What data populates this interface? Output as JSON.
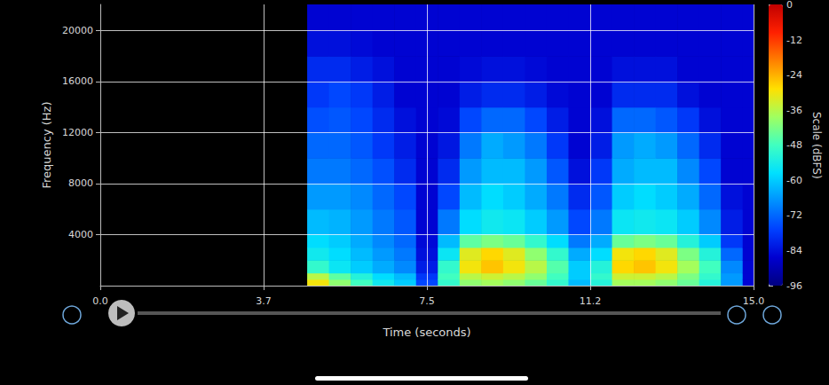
{
  "chart_data": {
    "type": "heatmap",
    "xlabel": "Time (seconds)",
    "ylabel": "Frequency (Hz)",
    "xlim": [
      0,
      15
    ],
    "xticks": [
      {
        "value": 0,
        "label": "0.0"
      },
      {
        "value": 3.75,
        "label": "3.7"
      },
      {
        "value": 7.5,
        "label": "7.5"
      },
      {
        "value": 11.25,
        "label": "11.2"
      },
      {
        "value": 15,
        "label": "15.0"
      }
    ],
    "ylim": [
      0,
      22050
    ],
    "yticks": [
      4000,
      8000,
      12000,
      16000,
      20000
    ],
    "grid": true,
    "time_bins": [
      0,
      4.75,
      5.25,
      5.75,
      6.25,
      6.75,
      7.25,
      7.75,
      8.25,
      8.75,
      9.25,
      9.75,
      10.25,
      10.75,
      11.25,
      11.75,
      12.25,
      12.75,
      13.25,
      13.75,
      14.25,
      14.75,
      15
    ],
    "frequency_bins": [
      0,
      500,
      1000,
      2000,
      3000,
      4000,
      6000,
      8000,
      10000,
      12000,
      14000,
      16000,
      18000,
      20000,
      22050
    ],
    "cells": [
      [
        null,
        null,
        null,
        null,
        null,
        null,
        null,
        null,
        null,
        null,
        null,
        null,
        null,
        null
      ],
      [
        -30,
        -36,
        -50,
        -55,
        -58,
        -62,
        -66,
        -70,
        -72,
        -75,
        -78,
        -80,
        -84,
        -86
      ],
      [
        -40,
        -45,
        -56,
        -58,
        -60,
        -63,
        -66,
        -70,
        -72,
        -74,
        -76,
        -80,
        -84,
        -86
      ],
      [
        -48,
        -52,
        -60,
        -62,
        -64,
        -66,
        -68,
        -72,
        -74,
        -76,
        -78,
        -82,
        -85,
        -86
      ],
      [
        -55,
        -58,
        -64,
        -66,
        -68,
        -70,
        -72,
        -75,
        -78,
        -80,
        -82,
        -84,
        -86,
        -86
      ],
      [
        -60,
        -62,
        -68,
        -70,
        -72,
        -74,
        -76,
        -80,
        -82,
        -84,
        -86,
        -86,
        -86,
        -86
      ],
      [
        -76,
        -78,
        -82,
        -84,
        -85,
        -86,
        -86,
        -86,
        -86,
        -86,
        -86,
        -86,
        -86,
        -86
      ],
      [
        -50,
        -48,
        -50,
        -56,
        -62,
        -70,
        -76,
        -80,
        -83,
        -85,
        -86,
        -86,
        -86,
        -86
      ],
      [
        -40,
        -36,
        -30,
        -32,
        -45,
        -58,
        -62,
        -66,
        -70,
        -76,
        -82,
        -85,
        -86,
        -86
      ],
      [
        -38,
        -34,
        -26,
        -28,
        -42,
        -55,
        -58,
        -62,
        -64,
        -72,
        -80,
        -84,
        -86,
        -86
      ],
      [
        -40,
        -36,
        -30,
        -32,
        -44,
        -56,
        -60,
        -62,
        -66,
        -72,
        -80,
        -84,
        -86,
        -86
      ],
      [
        -44,
        -40,
        -36,
        -40,
        -50,
        -60,
        -64,
        -66,
        -70,
        -76,
        -82,
        -85,
        -86,
        -86
      ],
      [
        -50,
        -48,
        -46,
        -50,
        -58,
        -66,
        -70,
        -74,
        -78,
        -82,
        -85,
        -86,
        -86,
        -86
      ],
      [
        -62,
        -60,
        -60,
        -64,
        -70,
        -76,
        -80,
        -84,
        -86,
        -86,
        -86,
        -86,
        -86,
        -86
      ],
      [
        -52,
        -50,
        -52,
        -58,
        -64,
        -70,
        -74,
        -78,
        -82,
        -84,
        -86,
        -86,
        -86,
        -86
      ],
      [
        -38,
        -34,
        -28,
        -30,
        -44,
        -56,
        -60,
        -64,
        -66,
        -72,
        -80,
        -84,
        -86,
        -86
      ],
      [
        -38,
        -34,
        -26,
        -28,
        -42,
        -55,
        -58,
        -62,
        -64,
        -72,
        -80,
        -84,
        -86,
        -86
      ],
      [
        -40,
        -36,
        -30,
        -32,
        -44,
        -56,
        -60,
        -62,
        -66,
        -74,
        -80,
        -84,
        -86,
        -86
      ],
      [
        -44,
        -42,
        -38,
        -42,
        -52,
        -60,
        -64,
        -68,
        -72,
        -78,
        -84,
        -86,
        -86,
        -86
      ],
      [
        -52,
        -50,
        -48,
        -52,
        -60,
        -68,
        -72,
        -76,
        -80,
        -84,
        -86,
        -86,
        -86,
        -86
      ],
      [
        -66,
        -66,
        -68,
        -72,
        -78,
        -82,
        -84,
        -86,
        -86,
        -86,
        -86,
        -86,
        -86,
        -86
      ],
      [
        -86,
        -86,
        -86,
        -86,
        -86,
        -86,
        -86,
        -86,
        -86,
        -86,
        -86,
        -86,
        -86,
        -86
      ]
    ],
    "colorbar": {
      "label": "Scale (dBFS)",
      "range": [
        -96,
        0
      ],
      "ticks": [
        0,
        -12,
        -24,
        -36,
        -48,
        -60,
        -72,
        -84,
        -96
      ]
    }
  }
}
